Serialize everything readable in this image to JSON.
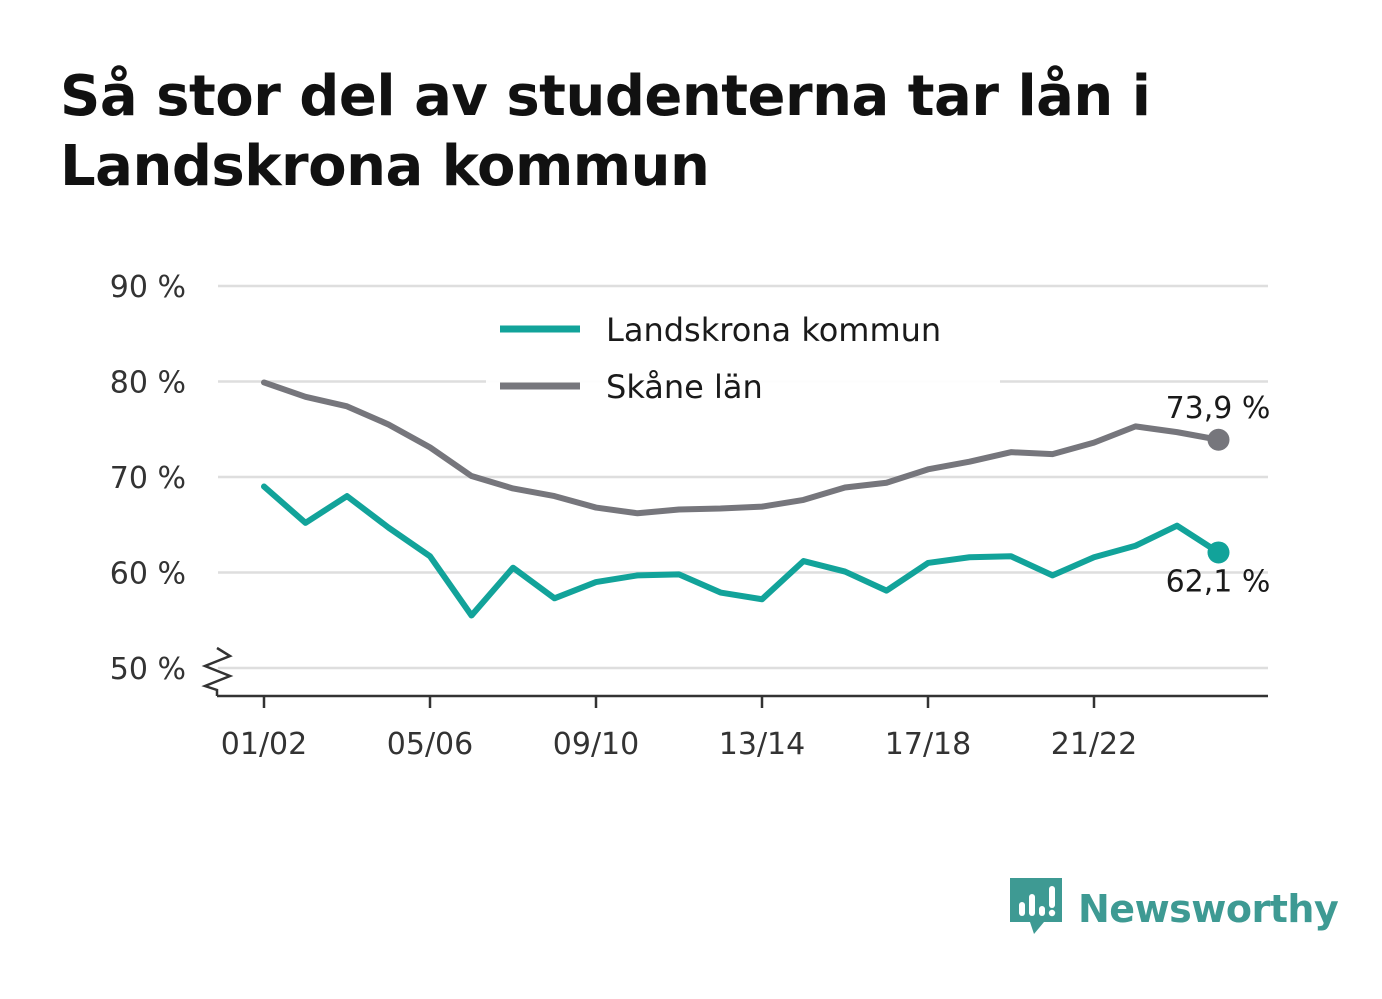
{
  "title": "Så stor del av studenterna tar lån i Landskrona kommun",
  "brand": {
    "name": "Newsworthy",
    "color": "#3e9a93"
  },
  "chart_data": {
    "type": "line",
    "title": "Så stor del av studenterna tar lån i Landskrona kommun",
    "xlabel": "",
    "ylabel": "",
    "x": [
      "01/02",
      "02/03",
      "03/04",
      "04/05",
      "05/06",
      "06/07",
      "07/08",
      "08/09",
      "09/10",
      "10/11",
      "11/12",
      "12/13",
      "13/14",
      "14/15",
      "15/16",
      "16/17",
      "17/18",
      "18/19",
      "19/20",
      "20/21",
      "21/22",
      "22/23",
      "23/24",
      "24/25"
    ],
    "x_tick_labels": [
      "01/02",
      "05/06",
      "09/10",
      "13/14",
      "17/18",
      "21/22"
    ],
    "y_tick_labels": [
      "50 %",
      "60 %",
      "70 %",
      "80 %",
      "90 %"
    ],
    "ylim": [
      47,
      90
    ],
    "y_ticks": [
      50,
      60,
      70,
      80,
      90
    ],
    "axis_break": true,
    "grid": true,
    "legend_position": "top-center",
    "series": [
      {
        "name": "Landskrona kommun",
        "color": "#12a39a",
        "end_label": "62,1 %",
        "values": [
          69.0,
          65.2,
          68.0,
          64.7,
          61.7,
          55.5,
          60.5,
          57.3,
          59.0,
          59.7,
          59.8,
          57.9,
          57.2,
          61.2,
          60.1,
          58.1,
          61.0,
          61.6,
          61.7,
          59.7,
          61.6,
          62.8,
          64.9,
          62.1
        ]
      },
      {
        "name": "Skåne län",
        "color": "#76767c",
        "end_label": "73,9 %",
        "values": [
          79.9,
          78.4,
          77.4,
          75.5,
          73.1,
          70.1,
          68.8,
          68.0,
          66.8,
          66.2,
          66.6,
          66.7,
          66.9,
          67.6,
          68.9,
          69.4,
          70.8,
          71.6,
          72.6,
          72.4,
          73.6,
          75.3,
          74.7,
          73.9
        ]
      }
    ]
  }
}
